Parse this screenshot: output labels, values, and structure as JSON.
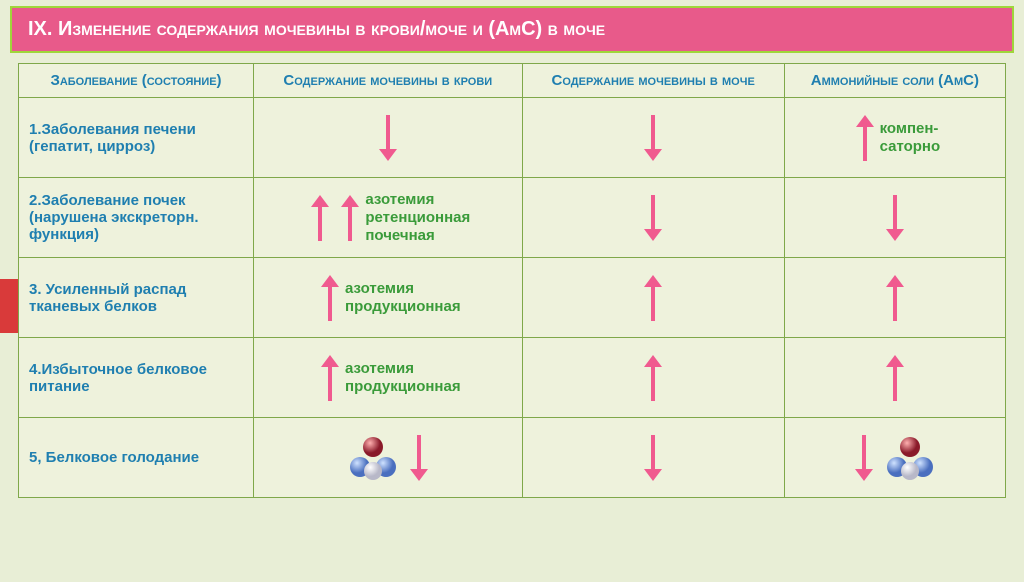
{
  "title": "IX. Изменение содержания мочевины в крови/моче и (АмС) в моче",
  "title_fontsize": 20,
  "colors": {
    "pink": "#e85a8a",
    "arrow_pink": "#f05a8f",
    "green_border": "#9fd63a",
    "table_border": "#7fa84a",
    "header_blue": "#1f7fb0",
    "note_green": "#3a9b3a",
    "bg": "#e8eed6",
    "table_bg": "#eef2dc",
    "red_accent": "#d93a3a"
  },
  "columns": [
    "Заболевание (состояние)",
    "Содержание мочевины в крови",
    "Содержание мочевины в моче",
    "Аммонийные соли (АмС)"
  ],
  "rows": [
    {
      "disease": "1.Заболевания печени (гепатит, цирроз)",
      "blood": {
        "arrows": [
          {
            "dir": "down"
          }
        ]
      },
      "urine": {
        "arrows": [
          {
            "dir": "down"
          }
        ]
      },
      "amc": {
        "arrows": [
          {
            "dir": "up"
          }
        ],
        "note": "компен-\nсаторно"
      }
    },
    {
      "disease": "2.Заболевание почек (нарушена экскреторн. функция)",
      "blood": {
        "arrows": [
          {
            "dir": "up"
          },
          {
            "dir": "up"
          }
        ],
        "note": "азотемия\nретенционная\nпочечная"
      },
      "urine": {
        "arrows": [
          {
            "dir": "down"
          }
        ]
      },
      "amc": {
        "arrows": [
          {
            "dir": "down"
          }
        ]
      }
    },
    {
      "disease": "3. Усиленный распад тканевых белков",
      "blood": {
        "arrows": [
          {
            "dir": "up"
          }
        ],
        "note": "азотемия\nпродукционная"
      },
      "urine": {
        "arrows": [
          {
            "dir": "up"
          }
        ]
      },
      "amc": {
        "arrows": [
          {
            "dir": "up"
          }
        ]
      }
    },
    {
      "disease": "4.Избыточное белковое питание",
      "blood": {
        "arrows": [
          {
            "dir": "up"
          }
        ],
        "note": "азотемия\nпродукционная"
      },
      "urine": {
        "arrows": [
          {
            "dir": "up"
          }
        ]
      },
      "amc": {
        "arrows": [
          {
            "dir": "up"
          }
        ]
      }
    },
    {
      "disease": "5, Белковое голодание",
      "blood": {
        "molecule": true,
        "arrows": [
          {
            "dir": "down"
          }
        ]
      },
      "urine": {
        "arrows": [
          {
            "dir": "down"
          }
        ]
      },
      "amc": {
        "arrows": [
          {
            "dir": "down"
          }
        ],
        "molecule": true
      }
    }
  ],
  "arrow_style": {
    "length": 46,
    "stroke_width": 4,
    "head_size": 9,
    "color": "#f05a8f"
  }
}
